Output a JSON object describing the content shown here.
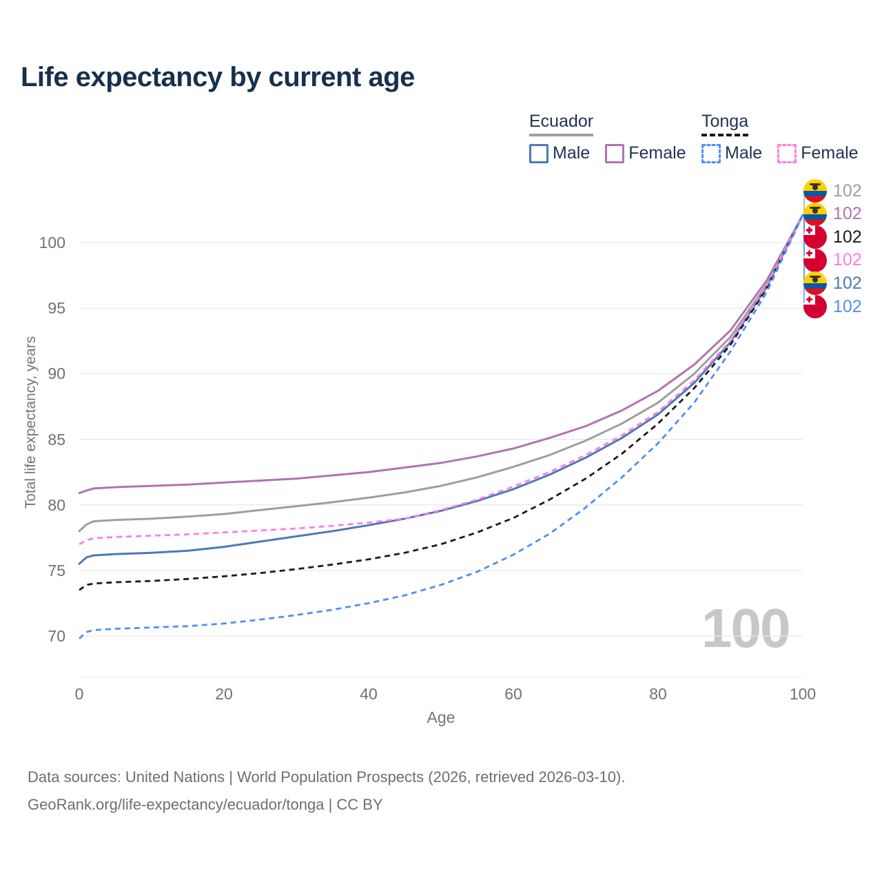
{
  "page": {
    "title": "Life expectancy by current age",
    "watermark": "100",
    "footer": {
      "line1": "Data sources: United Nations | World Population Prospects (2026, retrieved 2026-03-10).",
      "line2": "GeoRank.org/life-expectancy/ecuador/tonga | CC BY"
    }
  },
  "legend": {
    "groups": [
      {
        "label": "Ecuador",
        "underline_color": "#9e9e9e",
        "underline_style": "solid",
        "items": [
          {
            "label": "Male",
            "color": "#4b79b7",
            "style": "solid"
          },
          {
            "label": "Female",
            "color": "#b272b0",
            "style": "solid"
          }
        ]
      },
      {
        "label": "Tonga",
        "underline_color": "#1a1a1a",
        "underline_style": "dashed",
        "items": [
          {
            "label": "Male",
            "color": "#4d8ff5",
            "style": "dashed"
          },
          {
            "label": "Female",
            "color": "#ff7de1",
            "style": "dashed"
          }
        ]
      }
    ]
  },
  "chart_data": {
    "type": "line",
    "title": "Life expectancy by current age",
    "xlabel": "Age",
    "ylabel": "Total life expectancy, years",
    "xlim": [
      0,
      100
    ],
    "ylim": [
      67,
      105
    ],
    "xticks": [
      0,
      20,
      40,
      60,
      80,
      100
    ],
    "yticks": [
      70,
      75,
      80,
      85,
      90,
      95,
      100
    ],
    "grid": "horizontal-only",
    "legend_position": "top-right",
    "gridline_color": "#e9e9e9",
    "x": [
      0,
      1,
      2,
      5,
      10,
      15,
      20,
      25,
      30,
      35,
      40,
      45,
      50,
      55,
      60,
      65,
      70,
      75,
      80,
      85,
      90,
      95,
      100
    ],
    "series": [
      {
        "name": "Ecuador Female",
        "country": "Ecuador",
        "sex": "Female",
        "color": "#b272b0",
        "dash": "solid",
        "width": 3,
        "values": [
          80.9,
          81.1,
          81.25,
          81.35,
          81.45,
          81.55,
          81.7,
          81.85,
          82.0,
          82.25,
          82.5,
          82.85,
          83.2,
          83.7,
          84.3,
          85.1,
          86.0,
          87.2,
          88.7,
          90.7,
          93.3,
          97.1,
          102.1
        ]
      },
      {
        "name": "Ecuador Both sexes",
        "country": "Ecuador",
        "sex": "Both",
        "color": "#9e9e9e",
        "dash": "solid",
        "width": 3,
        "values": [
          78.0,
          78.5,
          78.75,
          78.85,
          78.95,
          79.1,
          79.3,
          79.6,
          79.9,
          80.2,
          80.55,
          80.95,
          81.45,
          82.1,
          82.9,
          83.8,
          84.9,
          86.2,
          87.8,
          90.0,
          92.8,
          96.8,
          102.1
        ]
      },
      {
        "name": "Ecuador Male",
        "country": "Ecuador",
        "sex": "Male",
        "color": "#4b79b7",
        "dash": "solid",
        "width": 3,
        "values": [
          75.5,
          76.0,
          76.15,
          76.25,
          76.35,
          76.5,
          76.8,
          77.2,
          77.6,
          78.0,
          78.45,
          78.95,
          79.55,
          80.3,
          81.2,
          82.3,
          83.6,
          85.1,
          86.9,
          89.3,
          92.4,
          96.6,
          102.1
        ]
      },
      {
        "name": "Tonga Both sexes",
        "country": "Tonga",
        "sex": "Both",
        "color": "#1b1b1b",
        "dash": "dashed",
        "width": 2.8,
        "values": [
          73.5,
          73.9,
          74.0,
          74.1,
          74.2,
          74.35,
          74.55,
          74.8,
          75.1,
          75.45,
          75.85,
          76.35,
          77.0,
          77.9,
          79.0,
          80.4,
          82.0,
          83.9,
          86.2,
          88.9,
          92.2,
          96.5,
          102.1
        ]
      },
      {
        "name": "Tonga Female",
        "country": "Tonga",
        "sex": "Female",
        "color": "#ff7de1",
        "dash": "dashed",
        "width": 2.8,
        "values": [
          77.0,
          77.3,
          77.45,
          77.55,
          77.65,
          77.75,
          77.9,
          78.05,
          78.2,
          78.4,
          78.65,
          78.95,
          79.6,
          80.4,
          81.4,
          82.5,
          83.8,
          85.3,
          87.1,
          89.5,
          92.5,
          96.7,
          102.1
        ]
      },
      {
        "name": "Tonga Male",
        "country": "Tonga",
        "sex": "Male",
        "color": "#4d8ff5",
        "dash": "dashed",
        "width": 2.8,
        "values": [
          69.8,
          70.3,
          70.45,
          70.55,
          70.65,
          70.75,
          70.95,
          71.25,
          71.6,
          72.0,
          72.5,
          73.1,
          73.9,
          74.9,
          76.2,
          77.8,
          79.8,
          82.1,
          84.7,
          87.8,
          91.7,
          96.2,
          102.1
        ]
      }
    ],
    "end_labels": [
      {
        "flag": "ecuador",
        "value": "102",
        "color": "#9e9e9e",
        "series": "Ecuador Both sexes"
      },
      {
        "flag": "ecuador",
        "value": "102",
        "color": "#b272b0",
        "series": "Ecuador Female"
      },
      {
        "flag": "tonga",
        "value": "102",
        "color": "#1a1a1a",
        "series": "Tonga Both sexes"
      },
      {
        "flag": "tonga",
        "value": "102",
        "color": "#ff7de1",
        "series": "Tonga Female"
      },
      {
        "flag": "ecuador",
        "value": "102",
        "color": "#4b79b7",
        "series": "Ecuador Male"
      },
      {
        "flag": "tonga",
        "value": "102",
        "color": "#4d8ff5",
        "series": "Tonga Male"
      }
    ]
  }
}
